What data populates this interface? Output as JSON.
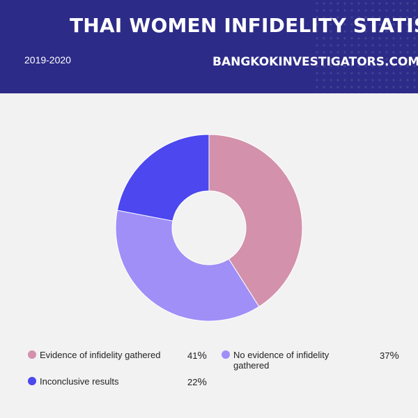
{
  "header": {
    "title": "THAI WOMEN INFIDELITY STATISTICS",
    "subtitle": "2019-2020",
    "site": "BANGKOKINVESTIGATORS.COM"
  },
  "colors": {
    "header_bg": "#2d2b88",
    "background": "#f2f2f2"
  },
  "chart_data": {
    "type": "pie",
    "style": "donut",
    "title": "THAI WOMEN INFIDELITY STATISTICS",
    "subtitle": "2019-2020",
    "legend_position": "bottom",
    "unit": "%",
    "slices": [
      {
        "label": "Evidence of infidelity gathered",
        "value": 41,
        "color": "#d391ab"
      },
      {
        "label": "No evidence of infidelity gathered",
        "value": 37,
        "color": "#9f8ff7"
      },
      {
        "label": "Inconclusive results",
        "value": 22,
        "color": "#4c47ee"
      }
    ]
  }
}
